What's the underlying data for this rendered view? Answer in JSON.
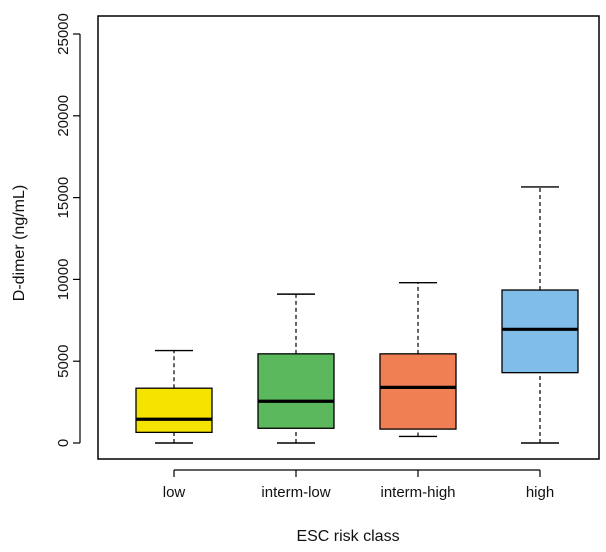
{
  "chart_data": {
    "type": "boxplot",
    "title": "",
    "xlabel": "ESC risk class",
    "ylabel": "D-dimer (ng/mL)",
    "ylim": [
      -1000,
      26000
    ],
    "yticks": [
      "0",
      "5000",
      "10000",
      "15000",
      "20000",
      "25000"
    ],
    "grid": false,
    "categories": [
      "low",
      "interm-low",
      "interm-high",
      "high"
    ],
    "boxes": [
      {
        "category": "low",
        "whisker_low": 0,
        "q1": 650,
        "median": 1450,
        "q3": 3350,
        "whisker_high": 5650,
        "color": "#f5e400"
      },
      {
        "category": "interm-low",
        "whisker_low": 0,
        "q1": 900,
        "median": 2550,
        "q3": 5450,
        "whisker_high": 9100,
        "color": "#5cb85c"
      },
      {
        "category": "interm-high",
        "whisker_low": 400,
        "q1": 850,
        "median": 3400,
        "q3": 5450,
        "whisker_high": 9800,
        "color": "#f07f54"
      },
      {
        "category": "high",
        "whisker_low": 0,
        "q1": 4300,
        "median": 6950,
        "q3": 9350,
        "whisker_high": 15650,
        "color": "#80bde8"
      }
    ]
  }
}
